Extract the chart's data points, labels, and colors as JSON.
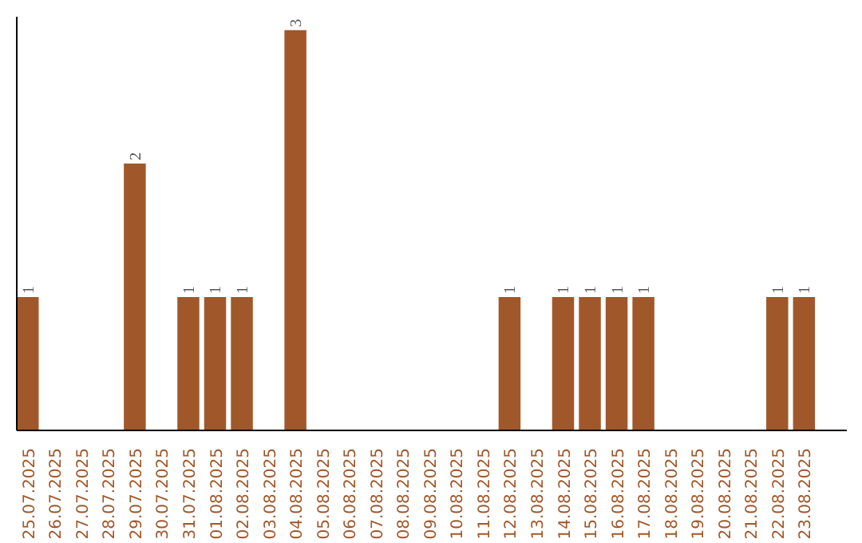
{
  "chart_data": {
    "type": "bar",
    "categories": [
      "25.07.2025",
      "26.07.2025",
      "27.07.2025",
      "28.07.2025",
      "29.07.2025",
      "30.07.2025",
      "31.07.2025",
      "01.08.2025",
      "02.08.2025",
      "03.08.2025",
      "04.08.2025",
      "05.08.2025",
      "06.08.2025",
      "07.08.2025",
      "08.08.2025",
      "09.08.2025",
      "10.08.2025",
      "11.08.2025",
      "12.08.2025",
      "13.08.2025",
      "14.08.2025",
      "15.08.2025",
      "16.08.2025",
      "17.08.2025",
      "18.08.2025",
      "19.08.2025",
      "20.08.2025",
      "21.08.2025",
      "22.08.2025",
      "23.08.2025"
    ],
    "values": [
      1,
      0,
      0,
      0,
      2,
      0,
      1,
      1,
      1,
      0,
      3,
      0,
      0,
      0,
      0,
      0,
      0,
      0,
      1,
      0,
      1,
      1,
      1,
      1,
      0,
      0,
      0,
      0,
      1,
      1
    ],
    "value_labels": [
      "1",
      null,
      null,
      null,
      "2",
      null,
      "1",
      "1",
      "1",
      null,
      "3",
      null,
      null,
      null,
      null,
      null,
      null,
      null,
      "1",
      null,
      "1",
      "1",
      "1",
      "1",
      null,
      null,
      null,
      null,
      "1",
      "1"
    ],
    "color": "#a0582a",
    "ylim": [
      0,
      3.1
    ],
    "tick_labels": "x"
  }
}
